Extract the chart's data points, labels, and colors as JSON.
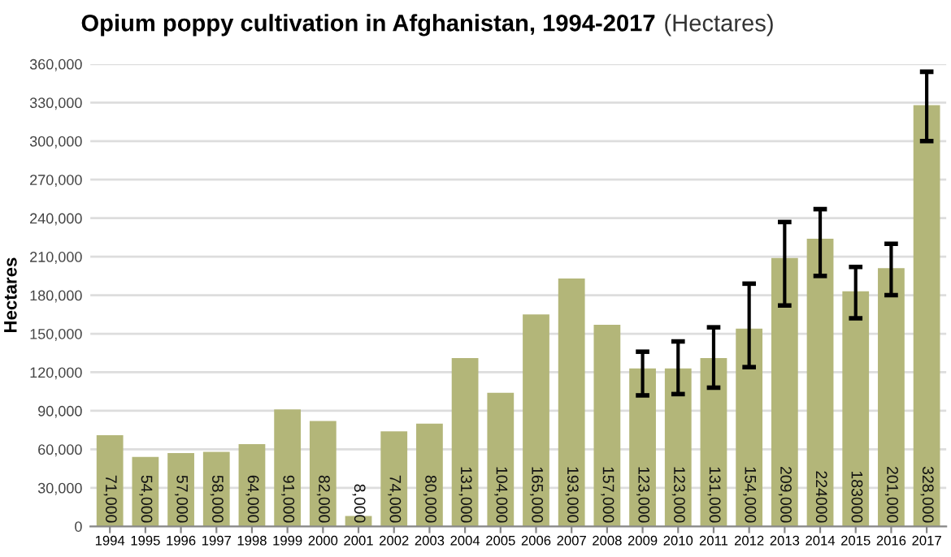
{
  "chart_data": {
    "type": "bar",
    "title": "Opium poppy cultivation in Afghanistan, 1994-2017",
    "subtitle": "(Hectares)",
    "ylabel": "Hectares",
    "categories": [
      "1994",
      "1995",
      "1996",
      "1997",
      "1998",
      "1999",
      "2000",
      "2001",
      "2002",
      "2003",
      "2004",
      "2005",
      "2006",
      "2007",
      "2008",
      "2009",
      "2010",
      "2011",
      "2012",
      "2013",
      "2014",
      "2015",
      "2016",
      "2017"
    ],
    "values": [
      71000,
      54000,
      57000,
      58000,
      64000,
      91000,
      82000,
      8000,
      74000,
      80000,
      131000,
      104000,
      165000,
      193000,
      157000,
      123000,
      123000,
      131000,
      154000,
      209000,
      224000,
      183000,
      201000,
      328000
    ],
    "value_labels": [
      "71,000",
      "54,000",
      "57,000",
      "58,000",
      "64,000",
      "91,000",
      "82,000",
      "8,000",
      "74,000",
      "80,000",
      "131,000",
      "104,000",
      "165,000",
      "193,000",
      "157,000",
      "123,000",
      "123,000",
      "131,000",
      "154,000",
      "209,000",
      "224000",
      "183000",
      "201,000",
      "328,000"
    ],
    "errors": [
      null,
      null,
      null,
      null,
      null,
      null,
      null,
      null,
      null,
      null,
      null,
      null,
      null,
      null,
      null,
      [
        102000,
        136000
      ],
      [
        103000,
        144000
      ],
      [
        108000,
        155000
      ],
      [
        124000,
        189000
      ],
      [
        172000,
        237000
      ],
      [
        195000,
        247000
      ],
      [
        162000,
        202000
      ],
      [
        180000,
        220000
      ],
      [
        300000,
        354000
      ]
    ],
    "color": "#b3b679",
    "ylim": [
      0,
      360000
    ],
    "yticks": [
      {
        "value": 0,
        "label": "0"
      },
      {
        "value": 30000,
        "label": "30,000"
      },
      {
        "value": 60000,
        "label": "60,000"
      },
      {
        "value": 90000,
        "label": "90,000"
      },
      {
        "value": 120000,
        "label": "120,000"
      },
      {
        "value": 150000,
        "label": "150,000"
      },
      {
        "value": 180000,
        "label": "180,000"
      },
      {
        "value": 210000,
        "label": "210,000"
      },
      {
        "value": 240000,
        "label": "240,000"
      },
      {
        "value": 270000,
        "label": "270,000"
      },
      {
        "value": 300000,
        "label": "300,000"
      },
      {
        "value": 330000,
        "label": "330,000"
      },
      {
        "value": 360000,
        "label": "360,000"
      }
    ],
    "grid": "y"
  }
}
